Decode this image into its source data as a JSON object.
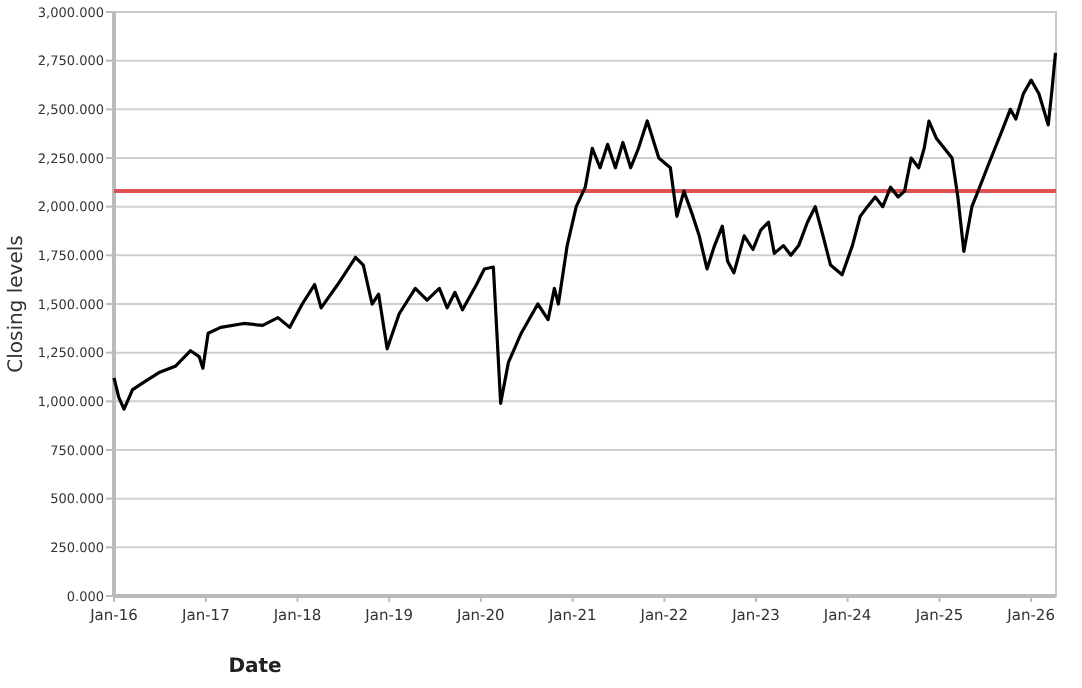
{
  "chart_data": {
    "type": "line",
    "xlabel": "Date",
    "ylabel": "Closing levels",
    "x": [
      "2016-01-01",
      "2016-01-20",
      "2016-02-10",
      "2016-03-15",
      "2016-05-01",
      "2016-07-01",
      "2016-09-01",
      "2016-11-01",
      "2016-12-05",
      "2016-12-20",
      "2017-01-10",
      "2017-03-01",
      "2017-06-01",
      "2017-08-15",
      "2017-10-15",
      "2017-12-01",
      "2018-01-20",
      "2018-03-10",
      "2018-04-05",
      "2018-06-10",
      "2018-08-20",
      "2018-09-20",
      "2018-10-25",
      "2018-11-20",
      "2018-12-24",
      "2019-02-10",
      "2019-04-15",
      "2019-06-01",
      "2019-07-20",
      "2019-08-20",
      "2019-09-20",
      "2019-10-20",
      "2019-12-15",
      "2020-01-15",
      "2020-02-20",
      "2020-03-20",
      "2020-04-20",
      "2020-06-10",
      "2020-08-15",
      "2020-09-25",
      "2020-10-20",
      "2020-11-05",
      "2020-12-10",
      "2021-01-15",
      "2021-02-20",
      "2021-03-20",
      "2021-04-20",
      "2021-05-20",
      "2021-06-20",
      "2021-07-20",
      "2021-08-20",
      "2021-09-20",
      "2021-10-25",
      "2021-12-10",
      "2022-01-25",
      "2022-02-20",
      "2022-03-20",
      "2022-04-25",
      "2022-05-20",
      "2022-06-20",
      "2022-07-20",
      "2022-08-20",
      "2022-09-10",
      "2022-10-05",
      "2022-11-15",
      "2022-12-20",
      "2023-01-20",
      "2023-02-20",
      "2023-03-15",
      "2023-04-20",
      "2023-05-20",
      "2023-06-20",
      "2023-07-25",
      "2023-08-25",
      "2023-09-25",
      "2023-10-25",
      "2023-12-10",
      "2024-01-20",
      "2024-02-20",
      "2024-03-20",
      "2024-04-20",
      "2024-05-20",
      "2024-06-20",
      "2024-07-20",
      "2024-08-15",
      "2024-09-10",
      "2024-10-10",
      "2024-11-01",
      "2024-11-20",
      "2024-12-20",
      "2025-01-20",
      "2025-02-20",
      "2025-03-15",
      "2025-04-08",
      "2025-05-10",
      "2025-06-10",
      "2025-07-10",
      "2025-08-10",
      "2025-09-10",
      "2025-10-10",
      "2025-11-01",
      "2025-12-01",
      "2026-01-01",
      "2026-02-01",
      "2026-03-10",
      "2026-03-25",
      "2026-04-08"
    ],
    "series": [
      {
        "color": "#000000",
        "values": [
          1120,
          1020,
          960,
          1060,
          1100,
          1150,
          1180,
          1260,
          1230,
          1170,
          1350,
          1380,
          1400,
          1390,
          1430,
          1380,
          1500,
          1600,
          1480,
          1600,
          1740,
          1700,
          1500,
          1550,
          1270,
          1450,
          1580,
          1520,
          1580,
          1480,
          1560,
          1470,
          1600,
          1680,
          1690,
          990,
          1200,
          1350,
          1500,
          1420,
          1580,
          1500,
          1800,
          2000,
          2100,
          2300,
          2200,
          2320,
          2200,
          2330,
          2200,
          2300,
          2440,
          2250,
          2200,
          1950,
          2080,
          1950,
          1850,
          1680,
          1800,
          1900,
          1720,
          1660,
          1850,
          1780,
          1880,
          1920,
          1760,
          1800,
          1750,
          1800,
          1920,
          2000,
          1850,
          1700,
          1650,
          1800,
          1950,
          2000,
          2050,
          2000,
          2100,
          2050,
          2080,
          2250,
          2200,
          2300,
          2440,
          2350,
          2300,
          2250,
          2050,
          1770,
          2000,
          2100,
          2200,
          2300,
          2400,
          2500,
          2450,
          2580,
          2650,
          2580,
          2420,
          2600,
          2790
        ]
      }
    ],
    "xlim": [
      "2016-01-01",
      "2026-04-10"
    ],
    "xticks": [
      {
        "value": "2016-01-01",
        "label": "Jan-16"
      },
      {
        "value": "2017-01-01",
        "label": "Jan-17"
      },
      {
        "value": "2018-01-01",
        "label": "Jan-18"
      },
      {
        "value": "2019-01-01",
        "label": "Jan-19"
      },
      {
        "value": "2020-01-01",
        "label": "Jan-20"
      },
      {
        "value": "2021-01-01",
        "label": "Jan-21"
      },
      {
        "value": "2022-01-01",
        "label": "Jan-22"
      },
      {
        "value": "2023-01-01",
        "label": "Jan-23"
      },
      {
        "value": "2024-01-01",
        "label": "Jan-24"
      },
      {
        "value": "2025-01-01",
        "label": "Jan-25"
      },
      {
        "value": "2026-01-01",
        "label": "Jan-26"
      }
    ],
    "ylim": [
      0,
      3000
    ],
    "yticks": [
      {
        "value": 0,
        "label": "0.000"
      },
      {
        "value": 250,
        "label": "250.000"
      },
      {
        "value": 500,
        "label": "500.000"
      },
      {
        "value": 750,
        "label": "750.000"
      },
      {
        "value": 1000,
        "label": "1,000.000"
      },
      {
        "value": 1250,
        "label": "1,250.000"
      },
      {
        "value": 1500,
        "label": "1,500.000"
      },
      {
        "value": 1750,
        "label": "1,750.000"
      },
      {
        "value": 2000,
        "label": "2,000.000"
      },
      {
        "value": 2250,
        "label": "2,250.000"
      },
      {
        "value": 2500,
        "label": "2,500.000"
      },
      {
        "value": 2750,
        "label": "2,750.000"
      },
      {
        "value": 3000,
        "label": "3,000.000"
      }
    ],
    "grid": "y",
    "marker": "none",
    "line_style": "solid",
    "ref_lines": [
      {
        "axis": "y",
        "value": 2080,
        "color": "#e05050"
      }
    ]
  }
}
